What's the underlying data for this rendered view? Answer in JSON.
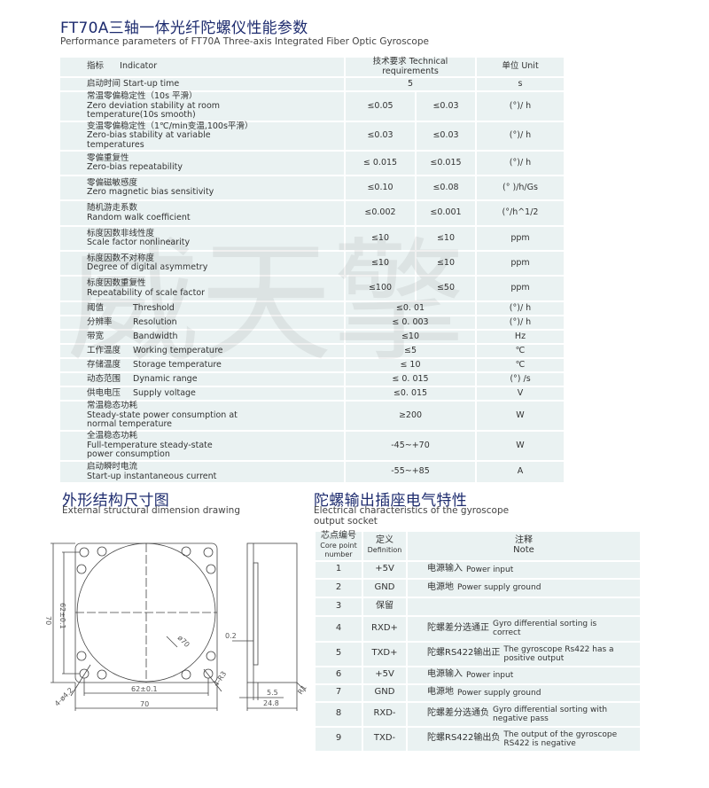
{
  "title": "FT70A三轴一体光纤陀螺仪性能参数",
  "subtitle": "Performance parameters of FT70A Three-axis Integrated Fiber Optic Gyroscope",
  "watermark": "威天擎",
  "perf_table": {
    "header": {
      "indicator_cn": "指标",
      "indicator_en": "Indicator",
      "req": "技术要求 Technical requirements",
      "unit": "单位 Unit"
    },
    "rows": [
      {
        "cn": "启动时间",
        "en": "Start-up time",
        "inline": true,
        "v": "5",
        "u": "s"
      },
      {
        "cn": "常温零偏稳定性（10s 平滑）",
        "en": "Zero deviation stability at room temperature(10s smooth)",
        "v1": "≤0.05",
        "v2": "≤0.03",
        "u": "(°)/ h"
      },
      {
        "cn": "变温零偏稳定性（1℃/min变温,100s平滑）",
        "en": "Zero-bias stability at variable temperatures",
        "v1": "≤0.03",
        "v2": "≤0.03",
        "u": "(°)/ h"
      },
      {
        "cn": "零偏重复性",
        "en": "Zero-bias repeatability",
        "v1": "≤ 0.015",
        "v2": "≤0.015",
        "u": "(°)/ h"
      },
      {
        "cn": "零偏磁敏感度",
        "en": "Zero magnetic bias sensitivity",
        "v1": "≤0.10",
        "v2": "≤0.08",
        "u": "(° )/h/Gs"
      },
      {
        "cn": "随机游走系数",
        "en": "Random walk coefficient",
        "v1": "≤0.002",
        "v2": "≤0.001",
        "u": "(°/h^1/2"
      },
      {
        "cn": "标度因数非线性度",
        "en": "Scale factor nonlinearity",
        "v1": "≤10",
        "v2": "≤10",
        "u": "ppm"
      },
      {
        "cn": "标度因数不对称度",
        "en": "Degree of digital asymmetry",
        "v1": "≤10",
        "v2": "≤10",
        "u": "ppm"
      },
      {
        "cn": "标度因数重复性",
        "en": "Repeatability of scale factor",
        "v1": "≤100",
        "v2": "≤50",
        "u": "ppm"
      },
      {
        "cn": "阈值",
        "en": "Threshold",
        "tab": true,
        "v": "≤0. 01",
        "u": "(°)/ h"
      },
      {
        "cn": "分辨率",
        "en": "Resolution",
        "tab": true,
        "v": "≤ 0. 003",
        "u": "(°)/ h"
      },
      {
        "cn": "带宽",
        "en": "Bandwidth",
        "tab": true,
        "v": "≤10",
        "u": "Hz"
      },
      {
        "cn": "工作温度",
        "en": "Working temperature",
        "tab": true,
        "v": "≤5",
        "u": "℃"
      },
      {
        "cn": "存储温度",
        "en": "Storage temperature",
        "tab": true,
        "v": "≤ 10",
        "u": "℃"
      },
      {
        "cn": "动态范围",
        "en": "Dynamic range",
        "tab": true,
        "v": "≤ 0. 015",
        "u": "(°) /s"
      },
      {
        "cn": "供电电压",
        "en": "Supply voltage",
        "tab": true,
        "v": "≤0. 015",
        "u": "V"
      },
      {
        "cn": "常温稳态功耗",
        "en": "Steady-state power consumption at normal temperature",
        "v": "≥200",
        "u": "W"
      },
      {
        "cn": "全温稳态功耗",
        "en": "Full-temperature steady-state power consumption",
        "v": "-45~+70",
        "u": "W"
      },
      {
        "cn": "启动瞬时电流",
        "en": "Start-up instantaneous current",
        "v": "-55~+85",
        "u": "A"
      }
    ]
  },
  "drawing": {
    "title": "外形结构尺寸图",
    "subtitle": "External structural dimension drawing",
    "dims": {
      "height": "70",
      "hole_v": "62±0.1",
      "hole_h": "62±0.1",
      "width": "70",
      "dia": "ø70",
      "holes": "4-ø4.2",
      "corner": "4-R3",
      "gap": "0.2",
      "flange": "5.5",
      "depth": "24.8",
      "edge": "R1"
    }
  },
  "socket": {
    "title": "陀螺输出插座电气特性",
    "subtitle": "Electrical characteristics of the gyroscope output socket",
    "header": {
      "num_cn": "芯点编号",
      "num_en": "Core point number",
      "def_cn": "定义",
      "def_en": "Definition",
      "note_cn": "注释",
      "note_en": "Note"
    },
    "rows": [
      {
        "n": "1",
        "d": "+5V",
        "cn": "电源输入",
        "en": "Power input"
      },
      {
        "n": "2",
        "d": "GND",
        "cn": "电源地",
        "en": "Power supply ground"
      },
      {
        "n": "3",
        "d": "保留",
        "cn": "",
        "en": ""
      },
      {
        "n": "4",
        "d": "RXD+",
        "cn": "陀螺差分选通正",
        "en": "Gyro differential sorting is correct"
      },
      {
        "n": "5",
        "d": "TXD+",
        "cn": "陀螺RS422输出正",
        "en": "The gyroscope Rs422 has a positive output"
      },
      {
        "n": "6",
        "d": "+5V",
        "cn": "电源输入",
        "en": "Power input"
      },
      {
        "n": "7",
        "d": "GND",
        "cn": "电源地",
        "en": "Power supply ground"
      },
      {
        "n": "8",
        "d": "RXD-",
        "cn": "陀螺差分选通负",
        "en": "Gyro differential sorting with negative pass"
      },
      {
        "n": "9",
        "d": "TXD-",
        "cn": "陀螺RS422输出负",
        "en": "The output of the gyroscope RS422 is negative"
      }
    ]
  }
}
